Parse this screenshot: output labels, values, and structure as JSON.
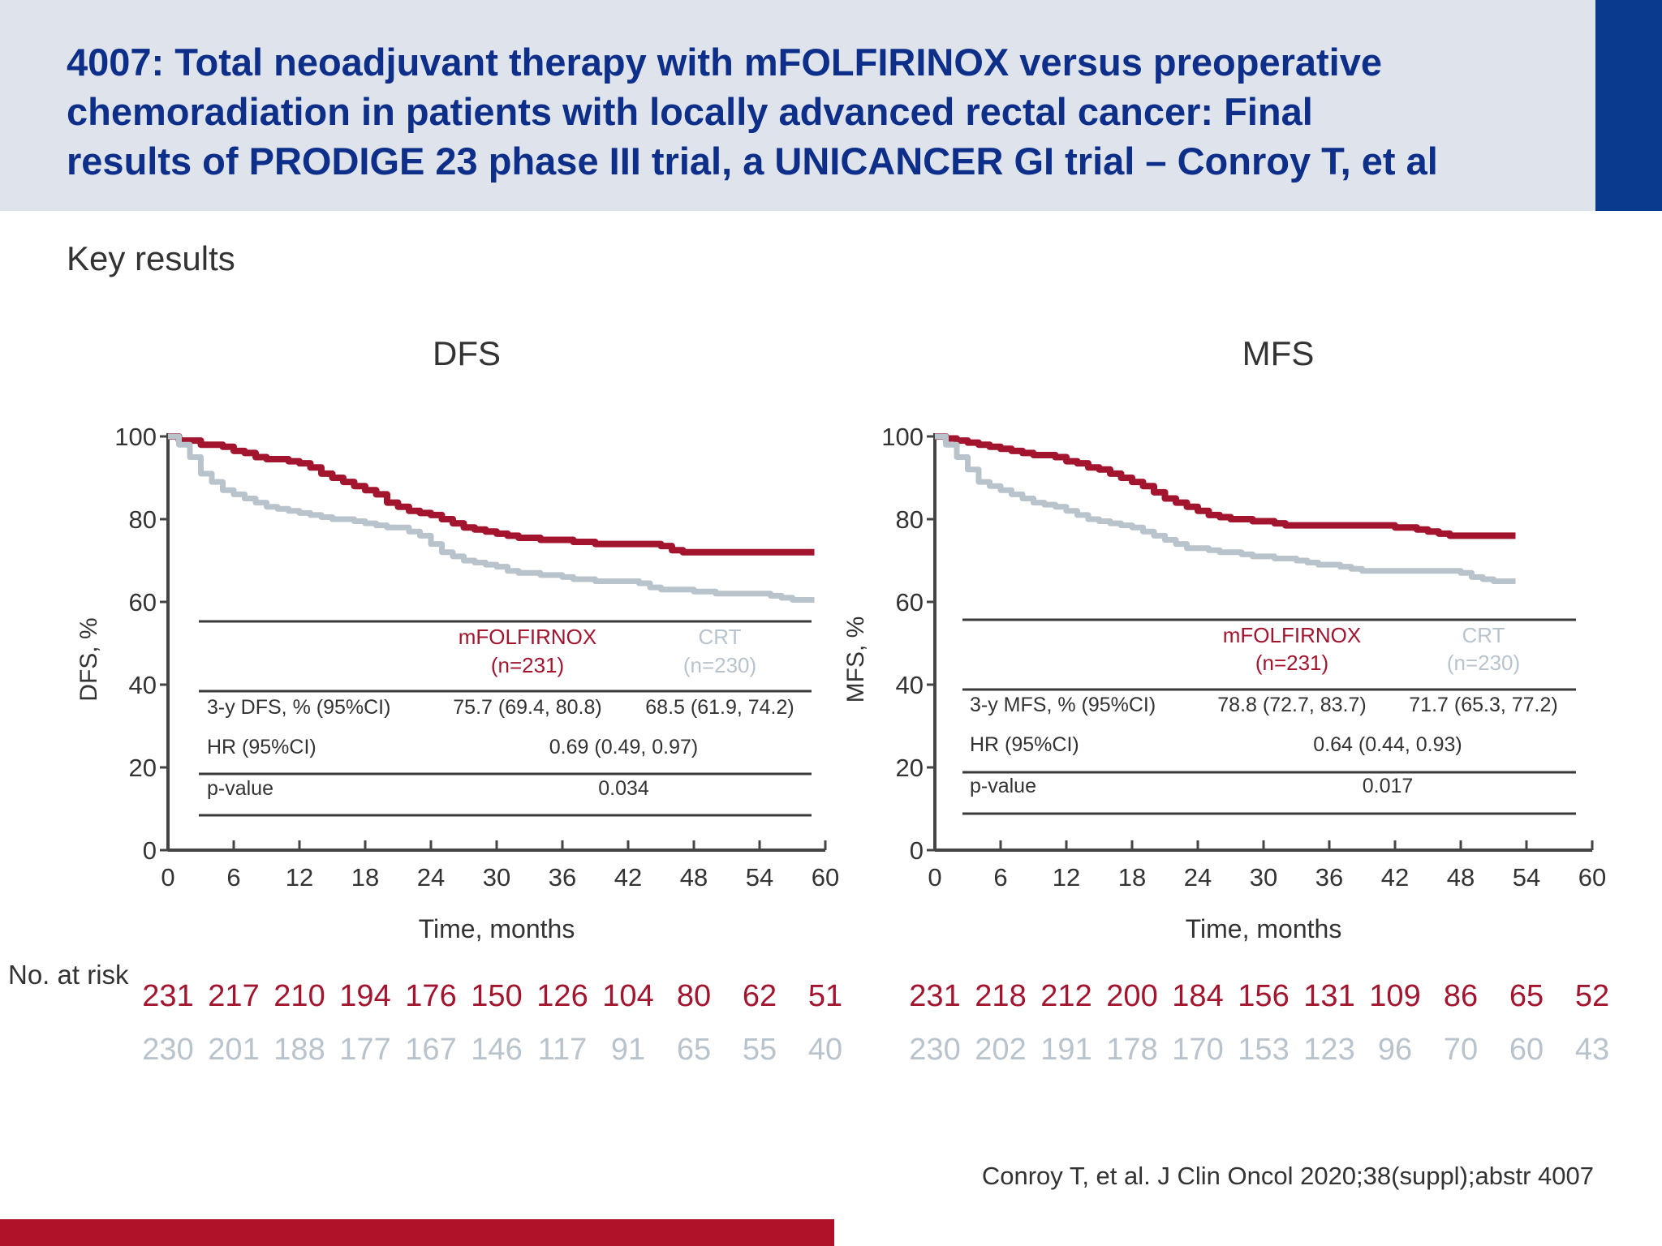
{
  "header": {
    "title_lines": [
      "4007: Total neoadjuvant therapy with mFOLFIRINOX versus preoperative",
      "chemoradiation in patients with locally advanced rectal cancer: Final",
      "results of PRODIGE 23 phase III trial, a UNICANCER GI trial – Conroy T, et al"
    ]
  },
  "subtitle": "Key results",
  "risk_label": "No. at risk",
  "citation": "Conroy T, et al. J Clin Oncol 2020;38(suppl);abstr 4007",
  "colors": {
    "mfolfirinox": "#a3152f",
    "crt": "#b8c3cc",
    "header_bg": "#dfe3ec",
    "title": "#0d2f8a",
    "accent_blue": "#0a3a8c",
    "footer_red": "#b0122a"
  },
  "chart_data": [
    {
      "type": "line",
      "title": "DFS",
      "xlabel": "Time, months",
      "ylabel": "DFS, %",
      "xlim": [
        0,
        60
      ],
      "ylim": [
        0,
        100
      ],
      "x_ticks": [
        0,
        6,
        12,
        18,
        24,
        30,
        36,
        42,
        48,
        54,
        60
      ],
      "y_ticks": [
        0,
        20,
        40,
        60,
        80,
        100
      ],
      "grid": false,
      "series": [
        {
          "name": "mFOLFIRINOX",
          "color": "#a3152f",
          "points": [
            [
              0,
              100
            ],
            [
              1,
              99
            ],
            [
              2,
              99
            ],
            [
              3,
              98
            ],
            [
              4,
              98
            ],
            [
              5,
              97.5
            ],
            [
              6,
              96.5
            ],
            [
              7,
              96
            ],
            [
              8,
              95
            ],
            [
              9,
              94.5
            ],
            [
              10,
              94.5
            ],
            [
              11,
              94
            ],
            [
              12,
              93.5
            ],
            [
              13,
              92.5
            ],
            [
              14,
              91
            ],
            [
              15,
              90
            ],
            [
              16,
              89
            ],
            [
              17,
              88
            ],
            [
              18,
              87
            ],
            [
              19,
              86
            ],
            [
              20,
              84
            ],
            [
              21,
              83
            ],
            [
              22,
              82
            ],
            [
              23,
              81.5
            ],
            [
              24,
              81
            ],
            [
              25,
              80
            ],
            [
              26,
              79
            ],
            [
              27,
              78
            ],
            [
              28,
              77.5
            ],
            [
              29,
              77
            ],
            [
              30,
              76.5
            ],
            [
              31,
              76
            ],
            [
              32,
              75.5
            ],
            [
              33,
              75.5
            ],
            [
              34,
              75
            ],
            [
              35,
              75
            ],
            [
              36,
              75
            ],
            [
              37,
              74.5
            ],
            [
              38,
              74.5
            ],
            [
              39,
              74
            ],
            [
              40,
              74
            ],
            [
              41,
              74
            ],
            [
              42,
              74
            ],
            [
              43,
              74
            ],
            [
              44,
              74
            ],
            [
              45,
              73.5
            ],
            [
              46,
              72.5
            ],
            [
              47,
              72
            ],
            [
              48,
              72
            ],
            [
              50,
              72
            ],
            [
              52,
              72
            ],
            [
              54,
              72
            ],
            [
              56,
              72
            ],
            [
              58,
              72
            ],
            [
              59,
              72
            ]
          ]
        },
        {
          "name": "CRT",
          "color": "#b8c3cc",
          "points": [
            [
              0,
              100
            ],
            [
              1,
              98
            ],
            [
              2,
              95
            ],
            [
              3,
              91
            ],
            [
              4,
              89
            ],
            [
              5,
              87
            ],
            [
              6,
              86
            ],
            [
              7,
              85
            ],
            [
              8,
              84
            ],
            [
              9,
              83
            ],
            [
              10,
              82.5
            ],
            [
              11,
              82
            ],
            [
              12,
              81.5
            ],
            [
              13,
              81
            ],
            [
              14,
              80.5
            ],
            [
              15,
              80
            ],
            [
              16,
              80
            ],
            [
              17,
              79.5
            ],
            [
              18,
              79
            ],
            [
              19,
              78.5
            ],
            [
              20,
              78
            ],
            [
              21,
              78
            ],
            [
              22,
              77
            ],
            [
              23,
              76
            ],
            [
              24,
              74
            ],
            [
              25,
              72
            ],
            [
              26,
              71
            ],
            [
              27,
              70
            ],
            [
              28,
              69.5
            ],
            [
              29,
              69
            ],
            [
              30,
              68.5
            ],
            [
              31,
              67.5
            ],
            [
              32,
              67
            ],
            [
              33,
              67
            ],
            [
              34,
              66.5
            ],
            [
              35,
              66.5
            ],
            [
              36,
              66
            ],
            [
              37,
              65.5
            ],
            [
              38,
              65.5
            ],
            [
              39,
              65
            ],
            [
              40,
              65
            ],
            [
              41,
              65
            ],
            [
              42,
              65
            ],
            [
              43,
              64.5
            ],
            [
              44,
              63.5
            ],
            [
              45,
              63
            ],
            [
              46,
              63
            ],
            [
              47,
              63
            ],
            [
              48,
              62.5
            ],
            [
              50,
              62
            ],
            [
              52,
              62
            ],
            [
              54,
              62
            ],
            [
              55,
              61.5
            ],
            [
              56,
              61
            ],
            [
              57,
              60.5
            ],
            [
              58,
              60.5
            ],
            [
              59,
              60.5
            ]
          ]
        }
      ],
      "table": {
        "col1_header": "mFOLFIRNOX",
        "col1_n": "(n=231)",
        "col2_header": "CRT",
        "col2_n": "(n=230)",
        "rows": [
          {
            "label": "3-y DFS, % (95%CI)",
            "v1": "75.7 (69.4, 80.8)",
            "v2": "68.5 (61.9, 74.2)"
          },
          {
            "label": "HR (95%CI)",
            "combined": "0.69 (0.49, 0.97)"
          },
          {
            "label": "p-value",
            "combined": "0.034"
          }
        ]
      },
      "risk": {
        "mfolfirinox": [
          "231",
          "217",
          "210",
          "194",
          "176",
          "150",
          "126",
          "104",
          "80",
          "62",
          "51"
        ],
        "crt": [
          "230",
          "201",
          "188",
          "177",
          "167",
          "146",
          "117",
          "91",
          "65",
          "55",
          "40"
        ]
      }
    },
    {
      "type": "line",
      "title": "MFS",
      "xlabel": "Time, months",
      "ylabel": "MFS, %",
      "xlim": [
        0,
        60
      ],
      "ylim": [
        0,
        100
      ],
      "x_ticks": [
        0,
        6,
        12,
        18,
        24,
        30,
        36,
        42,
        48,
        54,
        60
      ],
      "y_ticks": [
        0,
        20,
        40,
        60,
        80,
        100
      ],
      "grid": false,
      "series": [
        {
          "name": "mFOLFIRINOX",
          "color": "#a3152f",
          "points": [
            [
              0,
              100
            ],
            [
              1,
              99.5
            ],
            [
              2,
              99
            ],
            [
              3,
              98.5
            ],
            [
              4,
              98
            ],
            [
              5,
              97.5
            ],
            [
              6,
              97
            ],
            [
              7,
              96.5
            ],
            [
              8,
              96
            ],
            [
              9,
              95.5
            ],
            [
              10,
              95.5
            ],
            [
              11,
              95
            ],
            [
              12,
              94
            ],
            [
              13,
              93.5
            ],
            [
              14,
              92.5
            ],
            [
              15,
              92
            ],
            [
              16,
              91
            ],
            [
              17,
              90
            ],
            [
              18,
              89
            ],
            [
              19,
              88
            ],
            [
              20,
              86.5
            ],
            [
              21,
              85
            ],
            [
              22,
              84
            ],
            [
              23,
              83
            ],
            [
              24,
              82
            ],
            [
              25,
              81
            ],
            [
              26,
              80.5
            ],
            [
              27,
              80
            ],
            [
              28,
              80
            ],
            [
              29,
              79.5
            ],
            [
              30,
              79.5
            ],
            [
              31,
              79
            ],
            [
              32,
              78.5
            ],
            [
              33,
              78.5
            ],
            [
              34,
              78.5
            ],
            [
              35,
              78.5
            ],
            [
              36,
              78.5
            ],
            [
              38,
              78.5
            ],
            [
              40,
              78.5
            ],
            [
              41,
              78.5
            ],
            [
              42,
              78
            ],
            [
              43,
              78
            ],
            [
              44,
              77.5
            ],
            [
              45,
              77
            ],
            [
              46,
              76.5
            ],
            [
              47,
              76
            ],
            [
              48,
              76
            ],
            [
              50,
              76
            ],
            [
              52,
              76
            ],
            [
              53,
              76
            ]
          ]
        },
        {
          "name": "CRT",
          "color": "#b8c3cc",
          "points": [
            [
              0,
              100
            ],
            [
              1,
              98
            ],
            [
              2,
              95
            ],
            [
              3,
              92
            ],
            [
              4,
              89
            ],
            [
              5,
              88
            ],
            [
              6,
              87
            ],
            [
              7,
              86
            ],
            [
              8,
              85
            ],
            [
              9,
              84
            ],
            [
              10,
              83.5
            ],
            [
              11,
              83
            ],
            [
              12,
              82
            ],
            [
              13,
              81
            ],
            [
              14,
              80
            ],
            [
              15,
              79.5
            ],
            [
              16,
              79
            ],
            [
              17,
              78.5
            ],
            [
              18,
              78
            ],
            [
              19,
              77
            ],
            [
              20,
              76
            ],
            [
              21,
              75
            ],
            [
              22,
              74
            ],
            [
              23,
              73
            ],
            [
              24,
              73
            ],
            [
              25,
              72.5
            ],
            [
              26,
              72
            ],
            [
              27,
              72
            ],
            [
              28,
              71.5
            ],
            [
              29,
              71
            ],
            [
              30,
              71
            ],
            [
              31,
              70.5
            ],
            [
              32,
              70.5
            ],
            [
              33,
              70
            ],
            [
              34,
              69.5
            ],
            [
              35,
              69
            ],
            [
              36,
              69
            ],
            [
              37,
              68.5
            ],
            [
              38,
              68
            ],
            [
              39,
              67.5
            ],
            [
              40,
              67.5
            ],
            [
              42,
              67.5
            ],
            [
              44,
              67.5
            ],
            [
              46,
              67.5
            ],
            [
              48,
              67
            ],
            [
              49,
              66
            ],
            [
              50,
              65.5
            ],
            [
              51,
              65
            ],
            [
              52,
              65
            ],
            [
              53,
              65
            ]
          ]
        }
      ],
      "table": {
        "col1_header": "mFOLFIRNOX",
        "col1_n": "(n=231)",
        "col2_header": "CRT",
        "col2_n": "(n=230)",
        "rows": [
          {
            "label": "3-y MFS, % (95%CI)",
            "v1": "78.8 (72.7, 83.7)",
            "v2": "71.7 (65.3, 77.2)"
          },
          {
            "label": "HR (95%CI)",
            "combined": "0.64 (0.44, 0.93)"
          },
          {
            "label": "p-value",
            "combined": "0.017"
          }
        ]
      },
      "risk": {
        "mfolfirinox": [
          "231",
          "218",
          "212",
          "200",
          "184",
          "156",
          "131",
          "109",
          "86",
          "65",
          "52"
        ],
        "crt": [
          "230",
          "202",
          "191",
          "178",
          "170",
          "153",
          "123",
          "96",
          "70",
          "60",
          "43"
        ]
      }
    }
  ]
}
